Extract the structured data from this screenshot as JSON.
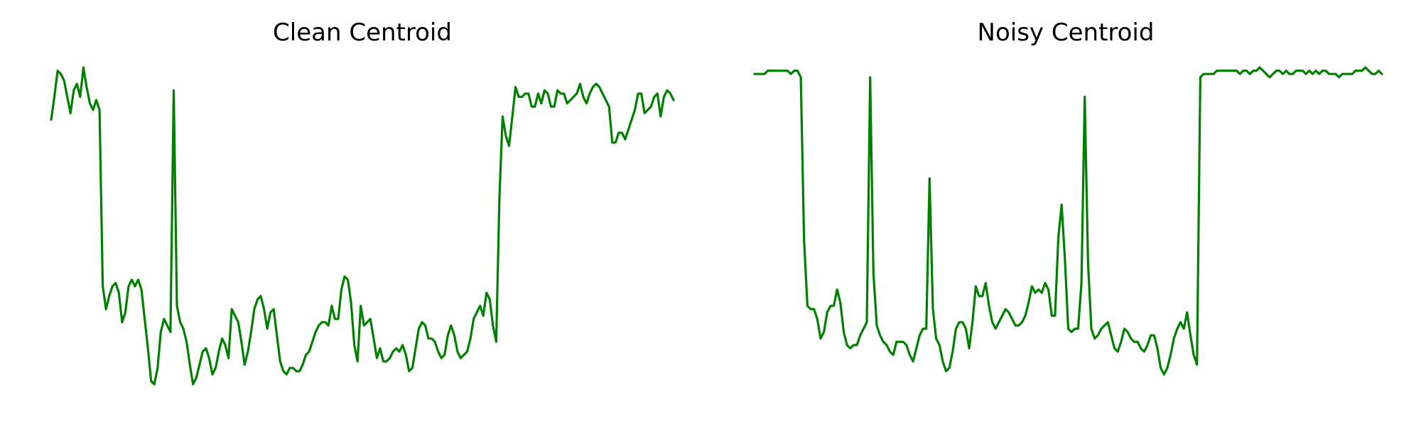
{
  "chart_data": [
    {
      "type": "line",
      "title": "Clean Centroid",
      "xlabel": "",
      "ylabel": "",
      "axes_visible": false,
      "grid": false,
      "color": "#008000",
      "xlim": [
        0,
        182
      ],
      "ylim": [
        0,
        1
      ],
      "series": [
        {
          "values": [
            0.84,
            0.91,
            0.99,
            0.98,
            0.96,
            0.91,
            0.86,
            0.93,
            0.95,
            0.91,
            1.0,
            0.94,
            0.89,
            0.87,
            0.9,
            0.87,
            0.33,
            0.26,
            0.3,
            0.33,
            0.34,
            0.31,
            0.22,
            0.25,
            0.33,
            0.35,
            0.33,
            0.35,
            0.32,
            0.23,
            0.14,
            0.04,
            0.03,
            0.08,
            0.19,
            0.23,
            0.21,
            0.19,
            0.93,
            0.27,
            0.22,
            0.2,
            0.16,
            0.09,
            0.03,
            0.05,
            0.09,
            0.13,
            0.14,
            0.11,
            0.06,
            0.08,
            0.13,
            0.17,
            0.15,
            0.11,
            0.26,
            0.24,
            0.22,
            0.16,
            0.09,
            0.13,
            0.19,
            0.26,
            0.29,
            0.3,
            0.26,
            0.2,
            0.25,
            0.26,
            0.18,
            0.1,
            0.07,
            0.06,
            0.08,
            0.08,
            0.07,
            0.07,
            0.09,
            0.12,
            0.13,
            0.16,
            0.19,
            0.21,
            0.22,
            0.22,
            0.21,
            0.27,
            0.23,
            0.23,
            0.32,
            0.36,
            0.35,
            0.28,
            0.15,
            0.1,
            0.27,
            0.21,
            0.22,
            0.23,
            0.17,
            0.11,
            0.14,
            0.1,
            0.1,
            0.11,
            0.13,
            0.14,
            0.13,
            0.15,
            0.12,
            0.07,
            0.08,
            0.14,
            0.2,
            0.22,
            0.21,
            0.17,
            0.17,
            0.16,
            0.13,
            0.11,
            0.12,
            0.18,
            0.21,
            0.18,
            0.13,
            0.11,
            0.12,
            0.13,
            0.17,
            0.23,
            0.25,
            0.27,
            0.24,
            0.31,
            0.29,
            0.21,
            0.16,
            0.6,
            0.85,
            0.79,
            0.76,
            0.85,
            0.94,
            0.91,
            0.91,
            0.92,
            0.92,
            0.88,
            0.88,
            0.92,
            0.89,
            0.93,
            0.92,
            0.88,
            0.88,
            0.93,
            0.92,
            0.92,
            0.89,
            0.9,
            0.91,
            0.92,
            0.95,
            0.91,
            0.89,
            0.92,
            0.94,
            0.95,
            0.94,
            0.92,
            0.9,
            0.88,
            0.77,
            0.77,
            0.8,
            0.8,
            0.78,
            0.81,
            0.84,
            0.87,
            0.92,
            0.92,
            0.86,
            0.87,
            0.88,
            0.91,
            0.92,
            0.85,
            0.91,
            0.93,
            0.92,
            0.9
          ]
        }
      ]
    },
    {
      "type": "line",
      "title": "Noisy Centroid",
      "xlabel": "",
      "ylabel": "",
      "axes_visible": false,
      "grid": false,
      "color": "#008000",
      "xlim": [
        0,
        182
      ],
      "ylim": [
        0,
        1
      ],
      "series": [
        {
          "values": [
            0.98,
            0.98,
            0.98,
            0.98,
            0.99,
            0.99,
            0.99,
            0.99,
            0.99,
            0.99,
            0.99,
            0.98,
            0.99,
            0.99,
            0.97,
            0.47,
            0.27,
            0.26,
            0.26,
            0.23,
            0.17,
            0.19,
            0.25,
            0.27,
            0.27,
            0.32,
            0.28,
            0.19,
            0.15,
            0.14,
            0.15,
            0.15,
            0.18,
            0.2,
            0.22,
            0.97,
            0.37,
            0.21,
            0.18,
            0.16,
            0.15,
            0.13,
            0.12,
            0.16,
            0.16,
            0.16,
            0.15,
            0.12,
            0.1,
            0.14,
            0.18,
            0.2,
            0.2,
            0.66,
            0.26,
            0.17,
            0.15,
            0.1,
            0.07,
            0.08,
            0.13,
            0.2,
            0.22,
            0.22,
            0.2,
            0.14,
            0.22,
            0.33,
            0.3,
            0.3,
            0.34,
            0.27,
            0.22,
            0.2,
            0.22,
            0.24,
            0.26,
            0.25,
            0.23,
            0.21,
            0.21,
            0.22,
            0.24,
            0.28,
            0.33,
            0.31,
            0.32,
            0.31,
            0.34,
            0.32,
            0.24,
            0.24,
            0.48,
            0.58,
            0.41,
            0.2,
            0.19,
            0.2,
            0.2,
            0.34,
            0.91,
            0.4,
            0.2,
            0.17,
            0.18,
            0.2,
            0.21,
            0.22,
            0.18,
            0.14,
            0.13,
            0.16,
            0.2,
            0.19,
            0.17,
            0.16,
            0.16,
            0.14,
            0.13,
            0.15,
            0.18,
            0.18,
            0.14,
            0.08,
            0.06,
            0.08,
            0.12,
            0.17,
            0.2,
            0.22,
            0.2,
            0.25,
            0.18,
            0.12,
            0.09,
            0.97,
            0.98,
            0.98,
            0.98,
            0.98,
            0.99,
            0.99,
            0.99,
            0.99,
            0.99,
            0.99,
            0.99,
            0.98,
            0.99,
            0.99,
            0.98,
            0.99,
            0.99,
            1.0,
            0.99,
            0.98,
            0.97,
            0.98,
            0.99,
            0.99,
            0.98,
            0.99,
            0.98,
            0.98,
            0.99,
            0.99,
            0.99,
            0.98,
            0.99,
            0.98,
            0.99,
            0.98,
            0.99,
            0.99,
            0.98,
            0.98,
            0.98,
            0.97,
            0.98,
            0.98,
            0.98,
            0.98,
            0.99,
            0.99,
            0.99,
            1.0,
            0.99,
            0.98,
            0.98,
            0.99,
            0.98
          ]
        }
      ]
    }
  ]
}
